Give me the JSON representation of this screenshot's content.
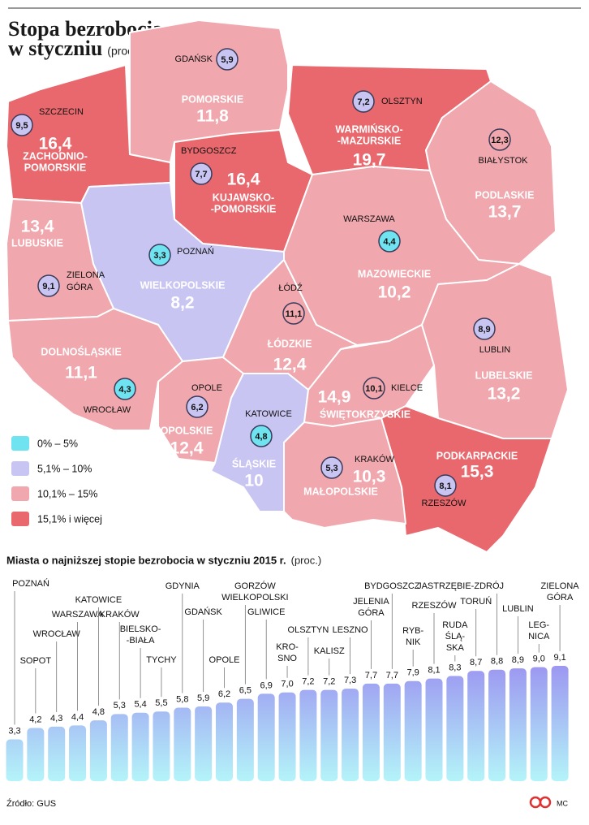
{
  "header": {
    "title_lines": [
      "Stopa bezrobocia",
      "w styczniu"
    ],
    "unit": "(proc.)"
  },
  "map": {
    "regions": [
      {
        "name": [
          "ZACHODNIO-",
          "POMORSKIE"
        ],
        "value": 16.4,
        "value_label": "16,4",
        "color": "#e8686d",
        "city": [
          "SZCZECIN"
        ],
        "city_value": 9.5,
        "city_value_label": "9,5",
        "city_color": "#c9c5f3"
      },
      {
        "name": [
          "POMORSKIE"
        ],
        "value": 11.8,
        "value_label": "11,8",
        "color": "#f0a7ad",
        "city": [
          "GDAŃSK"
        ],
        "city_value": 5.9,
        "city_value_label": "5,9",
        "city_color": "#c9c5f3"
      },
      {
        "name": [
          "WARMIŃSKO-",
          "-MAZURSKIE"
        ],
        "value": 19.7,
        "value_label": "19,7",
        "color": "#e8686d",
        "city": [
          "OLSZTYN"
        ],
        "city_value": 7.2,
        "city_value_label": "7,2",
        "city_color": "#c9c5f3"
      },
      {
        "name": [
          "PODLASKIE"
        ],
        "value": 13.7,
        "value_label": "13,7",
        "color": "#f0a7ad",
        "city": [
          "BIAŁYSTOK"
        ],
        "city_value": 12.3,
        "city_value_label": "12,3",
        "city_color": "#f0a7ad"
      },
      {
        "name": [
          "KUJAWSKO-",
          "-POMORSKIE"
        ],
        "value": 16.4,
        "value_label": "16,4",
        "color": "#e8686d",
        "city": [
          "BYDGOSZCZ"
        ],
        "city_value": 7.7,
        "city_value_label": "7,7",
        "city_color": "#c9c5f3"
      },
      {
        "name": [
          "MAZOWIECKIE"
        ],
        "value": 10.2,
        "value_label": "10,2",
        "color": "#f0a7ad",
        "city": [
          "WARSZAWA"
        ],
        "city_value": 4.4,
        "city_value_label": "4,4",
        "city_color": "#6fe3f0"
      },
      {
        "name": [
          "WIELKOPOLSKIE"
        ],
        "value": 8.2,
        "value_label": "8,2",
        "color": "#c9c5f3",
        "city": [
          "POZNAŃ"
        ],
        "city_value": 3.3,
        "city_value_label": "3,3",
        "city_color": "#6fe3f0"
      },
      {
        "name": [
          "LUBUSKIE"
        ],
        "value": 13.4,
        "value_label": "13,4",
        "color": "#f0a7ad",
        "city": [
          "ZIELONA",
          "GÓRA"
        ],
        "city_value": 9.1,
        "city_value_label": "9,1",
        "city_color": "#c9c5f3"
      },
      {
        "name": [
          "DOLNOŚLĄSKIE"
        ],
        "value": 11.1,
        "value_label": "11,1",
        "color": "#f0a7ad",
        "city": [
          "WROCŁAW"
        ],
        "city_value": 4.3,
        "city_value_label": "4,3",
        "city_color": "#6fe3f0"
      },
      {
        "name": [
          "OPOLSKIE"
        ],
        "value": 12.4,
        "value_label": "12,4",
        "color": "#f0a7ad",
        "city": [
          "OPOLE"
        ],
        "city_value": 6.2,
        "city_value_label": "6,2",
        "city_color": "#c9c5f3"
      },
      {
        "name": [
          "ŁÓDZKIE"
        ],
        "value": 12.4,
        "value_label": "12,4",
        "color": "#f0a7ad",
        "city": [
          "ŁÓDŹ"
        ],
        "city_value": 11.1,
        "city_value_label": "11,1",
        "city_color": "#f0a7ad"
      },
      {
        "name": [
          "ŚLĄSKIE"
        ],
        "value": 10,
        "value_label": "10",
        "color": "#c9c5f3",
        "city": [
          "KATOWICE"
        ],
        "city_value": 4.8,
        "city_value_label": "4,8",
        "city_color": "#6fe3f0"
      },
      {
        "name": [
          "ŚWIĘTOKRZYSKIE"
        ],
        "value": 14.9,
        "value_label": "14,9",
        "color": "#f0a7ad",
        "city": [
          "KIELCE"
        ],
        "city_value": 10.1,
        "city_value_label": "10,1",
        "city_color": "#f0a7ad"
      },
      {
        "name": [
          "LUBELSKIE"
        ],
        "value": 13.2,
        "value_label": "13,2",
        "color": "#f0a7ad",
        "city": [
          "LUBLIN"
        ],
        "city_value": 8.9,
        "city_value_label": "8,9",
        "city_color": "#c9c5f3"
      },
      {
        "name": [
          "PODKARPACKIE"
        ],
        "value": 15.3,
        "value_label": "15,3",
        "color": "#e8686d",
        "city": [
          "RZESZÓW"
        ],
        "city_value": 8.1,
        "city_value_label": "8,1",
        "city_color": "#c9c5f3"
      },
      {
        "name": [
          "MAŁOPOLSKIE"
        ],
        "value": 10.3,
        "value_label": "10,3",
        "color": "#f0a7ad",
        "city": [
          "KRAKÓW"
        ],
        "city_value": 5.3,
        "city_value_label": "5,3",
        "city_color": "#c9c5f3"
      }
    ],
    "legend": [
      {
        "label": "0% – 5%",
        "color": "#6fe3f0"
      },
      {
        "label": "5,1% – 10%",
        "color": "#c9c5f3"
      },
      {
        "label": "10,1% – 15%",
        "color": "#f0a7ad"
      },
      {
        "label": "15,1% i więcej",
        "color": "#e8686d"
      }
    ]
  },
  "chart_data": {
    "type": "bar",
    "title": "Miasta o najniższej stopie bezrobocia w styczniu 2015 r.",
    "unit": "(proc.)",
    "categories": [
      [
        "POZNAŃ"
      ],
      [
        "SOPOT"
      ],
      [
        "WROCŁAW"
      ],
      [
        "WARSZAWA"
      ],
      [
        "KATOWICE"
      ],
      [
        "KRAKÓW"
      ],
      [
        "BIELSKO-",
        "-BIAŁA"
      ],
      [
        "TYCHY"
      ],
      [
        "GDYNIA"
      ],
      [
        "GDAŃSK"
      ],
      [
        "OPOLE"
      ],
      [
        "GORZÓW",
        "WIELKOPOLSKI"
      ],
      [
        "GLIWICE"
      ],
      [
        "KRO-",
        "SNO"
      ],
      [
        "OLSZTYN"
      ],
      [
        "KALISZ"
      ],
      [
        "LESZNO"
      ],
      [
        "JELENIA",
        "GÓRA"
      ],
      [
        "BYDGOSZCZ"
      ],
      [
        "RYB-",
        "NIK"
      ],
      [
        "RZESZÓW"
      ],
      [
        "RUDA",
        "ŚLĄ-",
        "SKA"
      ],
      [
        "TORUŃ"
      ],
      [
        "JASTRZĘBIE-ZDRÓJ"
      ],
      [
        "LUBLIN"
      ],
      [
        "LEG-",
        "NICA"
      ],
      [
        "ZIELONA",
        "GÓRA"
      ]
    ],
    "values": [
      3.3,
      4.2,
      4.3,
      4.4,
      4.8,
      5.3,
      5.4,
      5.5,
      5.8,
      5.9,
      6.2,
      6.5,
      6.9,
      7.0,
      7.2,
      7.2,
      7.3,
      7.7,
      7.7,
      7.9,
      8.1,
      8.3,
      8.7,
      8.8,
      8.9,
      9.0,
      9.1
    ],
    "value_labels": [
      "3,3",
      "4,2",
      "4,3",
      "4,4",
      "4,8",
      "5,3",
      "5,4",
      "5,5",
      "5,8",
      "5,9",
      "6,2",
      "6,5",
      "6,9",
      "7,0",
      "7,2",
      "7,2",
      "7,3",
      "7,7",
      "7,7",
      "7,9",
      "8,1",
      "8,3",
      "8,7",
      "8,8",
      "8,9",
      "9,0",
      "9,1"
    ],
    "gradient": [
      "#b4f4f9",
      "#9a8ef0"
    ],
    "ylim": [
      0,
      10
    ]
  },
  "footer": {
    "source": "Źródło: GUS",
    "author": "MC"
  }
}
